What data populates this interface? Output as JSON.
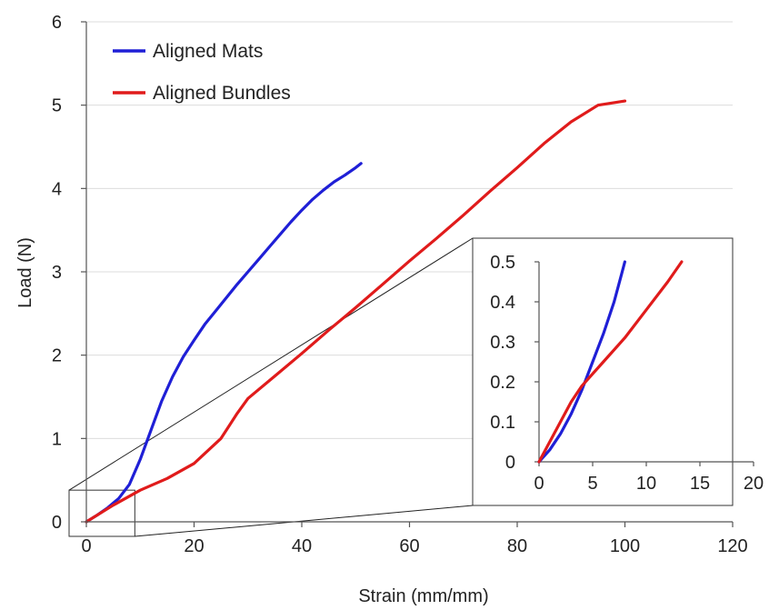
{
  "chart_data": [
    {
      "type": "line",
      "xlabel": "Strain (mm/mm)",
      "ylabel": "Load  (N)",
      "xlim": [
        0,
        120
      ],
      "ylim": [
        0,
        6
      ],
      "x_ticks": [
        "0",
        "20",
        "40",
        "60",
        "80",
        "100",
        "120"
      ],
      "y_ticks": [
        "0",
        "1",
        "2",
        "3",
        "4",
        "5",
        "6"
      ],
      "grid": "horizontal",
      "legend_position": "top-left",
      "series": [
        {
          "name": "Aligned Mats",
          "color": "#1f1fd6",
          "x": [
            0,
            2,
            4,
            6,
            8,
            10,
            12,
            14,
            16,
            18,
            20,
            22,
            24,
            26,
            28,
            30,
            32,
            34,
            36,
            38,
            40,
            42,
            44,
            46,
            48,
            50,
            51
          ],
          "y": [
            0,
            0.08,
            0.17,
            0.28,
            0.45,
            0.75,
            1.1,
            1.45,
            1.74,
            1.98,
            2.18,
            2.37,
            2.53,
            2.69,
            2.85,
            3.0,
            3.15,
            3.3,
            3.45,
            3.6,
            3.74,
            3.87,
            3.98,
            4.08,
            4.16,
            4.25,
            4.3
          ]
        },
        {
          "name": "Aligned Bundles",
          "color": "#e01b1b",
          "x": [
            0,
            5,
            10,
            15,
            20,
            25,
            28,
            30,
            35,
            40,
            45,
            50,
            55,
            60,
            65,
            70,
            75,
            80,
            85,
            90,
            95,
            100
          ],
          "y": [
            0,
            0.2,
            0.38,
            0.52,
            0.7,
            1.0,
            1.3,
            1.48,
            1.75,
            2.02,
            2.3,
            2.57,
            2.85,
            3.13,
            3.4,
            3.68,
            3.97,
            4.25,
            4.54,
            4.8,
            5.0,
            5.05
          ]
        }
      ]
    },
    {
      "type": "line",
      "xlim": [
        0,
        20
      ],
      "ylim": [
        0,
        0.5
      ],
      "x_ticks": [
        "0",
        "5",
        "10",
        "15",
        "20"
      ],
      "y_ticks": [
        "0",
        "0.1",
        "0.2",
        "0.3",
        "0.4",
        "0.5"
      ],
      "grid": "none",
      "series": [
        {
          "color": "#1f1fd6",
          "x": [
            0,
            1,
            2,
            3,
            4,
            5,
            6,
            7,
            7.7,
            8
          ],
          "y": [
            0,
            0.03,
            0.07,
            0.12,
            0.18,
            0.25,
            0.32,
            0.4,
            0.47,
            0.5
          ]
        },
        {
          "color": "#e01b1b",
          "x": [
            0,
            1,
            2,
            3,
            4,
            5,
            6,
            8,
            10,
            12,
            13.3
          ],
          "y": [
            0,
            0.05,
            0.1,
            0.15,
            0.19,
            0.22,
            0.25,
            0.31,
            0.38,
            0.45,
            0.5
          ]
        }
      ]
    }
  ]
}
